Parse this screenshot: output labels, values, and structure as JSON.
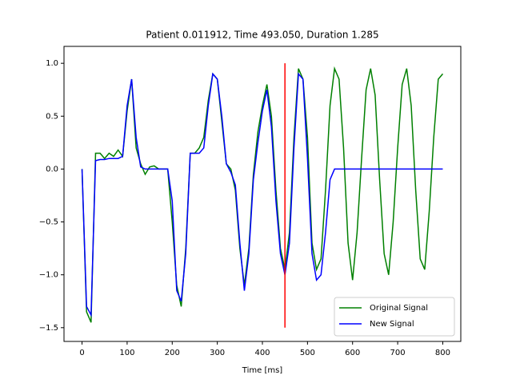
{
  "chart_data": {
    "type": "line",
    "title": "Patient  0.011912, Time  493.050, Duration  1.285",
    "x_label": "Time [ms]",
    "x": [
      0,
      10,
      20,
      30,
      40,
      50,
      60,
      70,
      80,
      90,
      100,
      110,
      120,
      130,
      140,
      150,
      160,
      170,
      180,
      190,
      200,
      210,
      220,
      230,
      240,
      250,
      260,
      270,
      280,
      290,
      300,
      310,
      320,
      330,
      340,
      350,
      360,
      370,
      380,
      390,
      400,
      410,
      420,
      430,
      440,
      450,
      460,
      470,
      480,
      490,
      500,
      510,
      520,
      530,
      540,
      550,
      560,
      570,
      580,
      590,
      600,
      610,
      620,
      630,
      640,
      650,
      660,
      670,
      680,
      690,
      700,
      710,
      720,
      730,
      740,
      750,
      760,
      770,
      780,
      790,
      800
    ],
    "series": [
      {
        "name": "Original Signal",
        "color": "#008000",
        "values": [
          0,
          -1.35,
          -1.45,
          0.15,
          0.15,
          0.1,
          0.15,
          0.12,
          0.18,
          0.12,
          0.55,
          0.85,
          0.2,
          0.05,
          -0.05,
          0.02,
          0.03,
          0,
          0,
          0,
          -0.5,
          -1.1,
          -1.3,
          -0.75,
          0.15,
          0.15,
          0.2,
          0.3,
          0.65,
          0.9,
          0.85,
          0.45,
          0.05,
          0,
          -0.2,
          -0.75,
          -1.1,
          -0.75,
          -0.05,
          0.35,
          0.6,
          0.8,
          0.5,
          -0.2,
          -0.75,
          -0.95,
          -0.6,
          0.3,
          0.95,
          0.85,
          0.3,
          -0.7,
          -0.95,
          -0.85,
          -0.2,
          0.6,
          0.95,
          0.85,
          0.2,
          -0.7,
          -1.05,
          -0.6,
          0.1,
          0.75,
          0.95,
          0.7,
          -0.1,
          -0.8,
          -1.0,
          -0.5,
          0.2,
          0.8,
          0.95,
          0.6,
          -0.2,
          -0.85,
          -0.95,
          -0.4,
          0.3,
          0.85,
          0.9
        ]
      },
      {
        "name": "New Signal",
        "color": "#0000ff",
        "values": [
          0,
          -1.3,
          -1.38,
          0.08,
          0.09,
          0.09,
          0.1,
          0.1,
          0.1,
          0.12,
          0.6,
          0.85,
          0.3,
          0.02,
          0,
          0,
          0,
          0,
          0,
          0,
          -0.3,
          -1.15,
          -1.25,
          -0.8,
          0.15,
          0.15,
          0.15,
          0.2,
          0.6,
          0.9,
          0.85,
          0.5,
          0.05,
          -0.03,
          -0.15,
          -0.7,
          -1.15,
          -0.8,
          -0.1,
          0.25,
          0.55,
          0.75,
          0.4,
          -0.3,
          -0.8,
          -1.0,
          -0.7,
          0.2,
          0.9,
          0.85,
          0.1,
          -0.8,
          -1.05,
          -1.0,
          -0.6,
          -0.1,
          0,
          0,
          0,
          0,
          0,
          0,
          0,
          0,
          0,
          0,
          0,
          0,
          0,
          0,
          0,
          0,
          0,
          0,
          0,
          0,
          0,
          0,
          0,
          0,
          0
        ]
      }
    ],
    "vline": {
      "x": 450,
      "ymin": -1.5,
      "ymax": 1.0,
      "color": "#ff0000"
    },
    "xlim": [
      -40,
      840
    ],
    "ylim": [
      -1.63,
      1.16
    ],
    "xticks": [
      0,
      100,
      200,
      300,
      400,
      500,
      600,
      700,
      800
    ],
    "yticks": [
      {
        "value": -1.5,
        "label": "−1.5"
      },
      {
        "value": -1,
        "label": "−1.0"
      },
      {
        "value": -0.5,
        "label": "−0.5"
      },
      {
        "value": 0,
        "label": "0.0"
      },
      0.5,
      {
        "value": 1,
        "label": "1.0"
      }
    ],
    "legend": "lower right"
  }
}
